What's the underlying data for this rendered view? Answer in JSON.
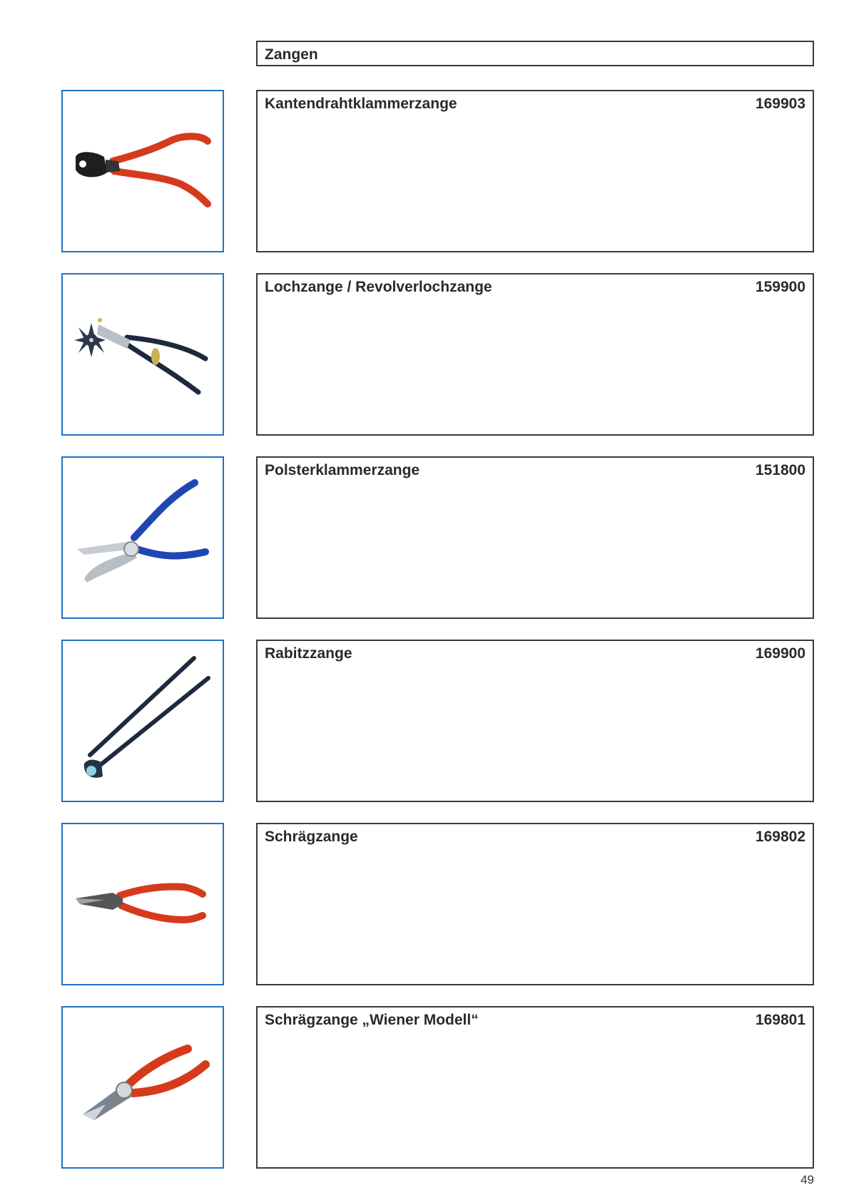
{
  "section": {
    "title": "Zangen"
  },
  "products": [
    {
      "name": "Kantendrahtklammerzange",
      "code": "169903",
      "icon": "end-cutting-pliers-red-icon"
    },
    {
      "name": "Lochzange / Revolverlochzange",
      "code": "159900",
      "icon": "revolving-punch-pliers-icon"
    },
    {
      "name": "Polsterklammerzange",
      "code": "151800",
      "icon": "upholstery-clip-pliers-blue-icon"
    },
    {
      "name": "Rabitzzange",
      "code": "169900",
      "icon": "rabitz-pincers-icon"
    },
    {
      "name": "Schrägzange",
      "code": "169802",
      "icon": "diagonal-cutter-red-icon"
    },
    {
      "name": "Schrägzange „Wiener Modell“",
      "code": "169801",
      "icon": "diagonal-cutter-vienna-icon"
    }
  ],
  "footer": {
    "page_number": "49"
  },
  "colors": {
    "thumb_border": "#1f73c4",
    "card_border": "#3a3a3a",
    "handle_red": "#e0401f",
    "handle_blue": "#2146b3",
    "handle_dark": "#1d2a3d"
  }
}
